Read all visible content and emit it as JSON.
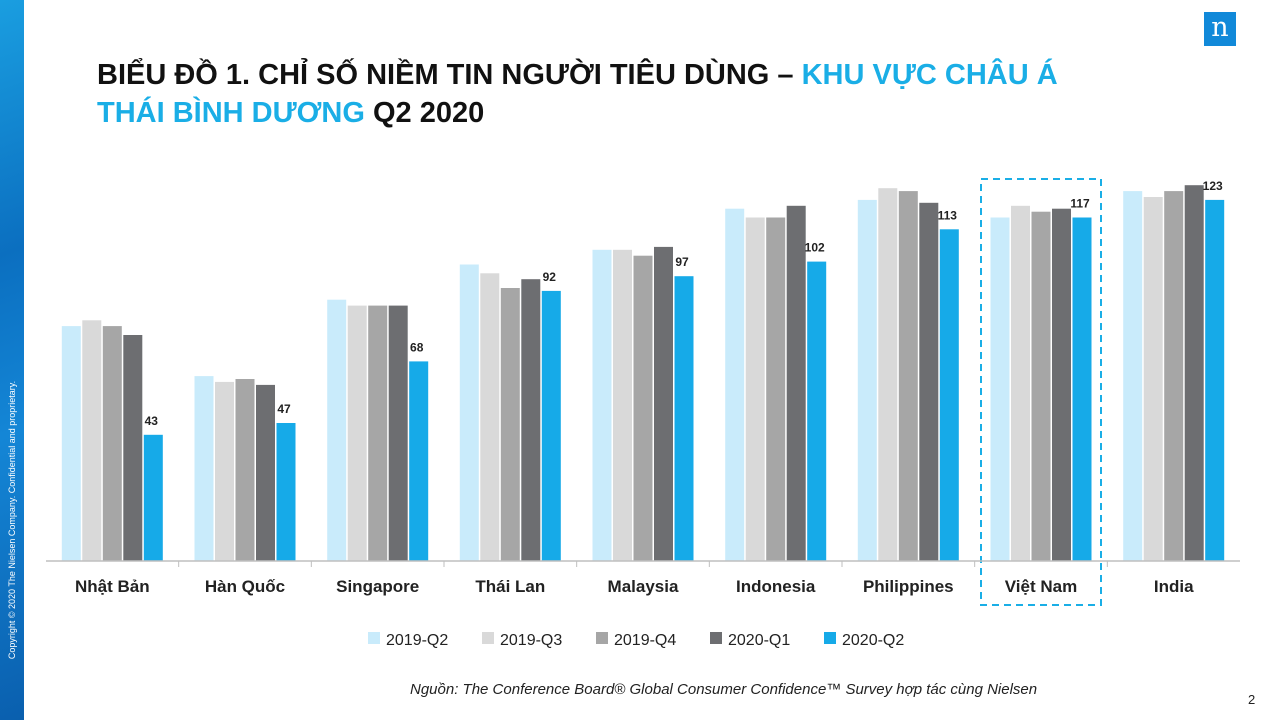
{
  "slide": {
    "title_part1": "BIỂU ĐỒ 1. CHỈ SỐ NIỀM TIN NGƯỜI TIÊU DÙNG – ",
    "title_highlight1": "KHU VỰC CHÂU Á",
    "title_highlight2": "THÁI BÌNH DƯƠNG",
    "title_part2": " Q2 2020",
    "copyright": "Copyright © 2020 The Nielsen Company. Confidential and proprietary.",
    "logo": "n",
    "source": "Nguồn: The Conference Board® Global Consumer Confidence™ Survey hợp tác cùng Nielsen",
    "page_number": "2"
  },
  "colors": {
    "2019-Q2": "#c9ebfb",
    "2019-Q3": "#d9d9d9",
    "2019-Q4": "#a6a6a6",
    "2020-Q1": "#6d6e71",
    "2020-Q2": "#16aae8",
    "highlight_box": "#1aaee6"
  },
  "chart_data": {
    "type": "bar",
    "categories": [
      "Nhật Bản",
      "Hàn Quốc",
      "Singapore",
      "Thái Lan",
      "Malaysia",
      "Indonesia",
      "Philippines",
      "Việt Nam",
      "India"
    ],
    "highlighted_category": "Việt Nam",
    "series": [
      {
        "name": "2019-Q2",
        "values": [
          80,
          63,
          89,
          101,
          106,
          120,
          123,
          117,
          126
        ]
      },
      {
        "name": "2019-Q3",
        "values": [
          82,
          61,
          87,
          98,
          106,
          117,
          127,
          121,
          124
        ]
      },
      {
        "name": "2019-Q4",
        "values": [
          80,
          62,
          87,
          93,
          104,
          117,
          126,
          119,
          126
        ]
      },
      {
        "name": "2020-Q1",
        "values": [
          77,
          60,
          87,
          96,
          107,
          121,
          122,
          120,
          128
        ]
      },
      {
        "name": "2020-Q2",
        "values": [
          43,
          47,
          68,
          92,
          97,
          102,
          113,
          117,
          123
        ]
      }
    ],
    "data_labels": {
      "series": "2020-Q2",
      "values": [
        "43",
        "47",
        "68",
        "92",
        "97",
        "102",
        "113",
        "117",
        "123"
      ]
    },
    "ylim": [
      0,
      140
    ],
    "grid": false,
    "legend_position": "bottom"
  }
}
